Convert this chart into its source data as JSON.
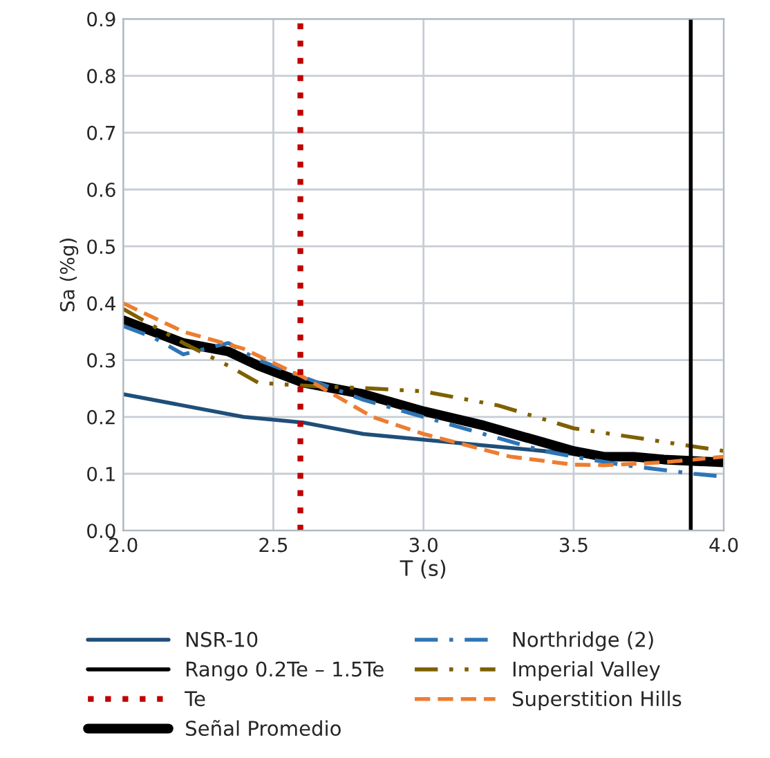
{
  "chart_data": {
    "type": "line",
    "xlabel": "T (s)",
    "ylabel": "Sa (%g)",
    "xlim": [
      2.0,
      4.0
    ],
    "ylim": [
      0.0,
      0.9
    ],
    "xticks": [
      {
        "value": 2.0,
        "label": "2.0"
      },
      {
        "value": 2.5,
        "label": "2.5"
      },
      {
        "value": 3.0,
        "label": "3.0"
      },
      {
        "value": 3.5,
        "label": "3.5"
      },
      {
        "value": 4.0,
        "label": "4.0"
      }
    ],
    "yticks": [
      {
        "value": 0.0,
        "label": "0.0"
      },
      {
        "value": 0.1,
        "label": "0.1"
      },
      {
        "value": 0.2,
        "label": "0.2"
      },
      {
        "value": 0.3,
        "label": "0.3"
      },
      {
        "value": 0.4,
        "label": "0.4"
      },
      {
        "value": 0.5,
        "label": "0.5"
      },
      {
        "value": 0.6,
        "label": "0.6"
      },
      {
        "value": 0.7,
        "label": "0.7"
      },
      {
        "value": 0.8,
        "label": "0.8"
      },
      {
        "value": 0.9,
        "label": "0.9"
      }
    ],
    "grid": true,
    "legend": "bottom",
    "series": [
      {
        "name": "NSR-10",
        "color": "#1f4e79",
        "line_style": "solid",
        "x": [
          2.0,
          2.2,
          2.4,
          2.6,
          2.8,
          3.0,
          3.2,
          3.4,
          3.6,
          3.8,
          4.0
        ],
        "values": [
          0.24,
          0.22,
          0.2,
          0.19,
          0.17,
          0.16,
          0.15,
          0.14,
          0.13,
          0.125,
          0.12
        ]
      },
      {
        "name": "Señal Promedio",
        "color": "#000000",
        "line_style": "solid",
        "x": [
          2.0,
          2.1,
          2.2,
          2.3,
          2.35,
          2.45,
          2.6,
          2.8,
          3.0,
          3.2,
          3.4,
          3.5,
          3.6,
          3.7,
          3.8,
          4.0
        ],
        "values": [
          0.37,
          0.35,
          0.33,
          0.32,
          0.315,
          0.29,
          0.26,
          0.24,
          0.21,
          0.185,
          0.155,
          0.14,
          0.13,
          0.13,
          0.125,
          0.12
        ]
      },
      {
        "name": "Northridge (2)",
        "color": "#2e75b6",
        "line_style": "dashdot",
        "x": [
          2.0,
          2.1,
          2.2,
          2.35,
          2.45,
          2.6,
          2.8,
          3.0,
          3.2,
          3.4,
          3.5,
          3.67,
          3.9,
          4.0
        ],
        "values": [
          0.36,
          0.34,
          0.31,
          0.33,
          0.3,
          0.27,
          0.23,
          0.2,
          0.17,
          0.14,
          0.13,
          0.115,
          0.1,
          0.095
        ]
      },
      {
        "name": "Imperial Valley",
        "color": "#7f6000",
        "line_style": "dashdotdot",
        "x": [
          2.0,
          2.2,
          2.35,
          2.45,
          2.6,
          2.83,
          3.0,
          3.25,
          3.5,
          3.75,
          4.0
        ],
        "values": [
          0.39,
          0.33,
          0.29,
          0.26,
          0.255,
          0.25,
          0.245,
          0.22,
          0.18,
          0.16,
          0.14
        ]
      },
      {
        "name": "Superstition Hills",
        "color": "#ed7d31",
        "line_style": "dashed",
        "x": [
          2.0,
          2.2,
          2.4,
          2.6,
          2.83,
          3.0,
          3.29,
          3.5,
          3.6,
          3.8,
          4.0
        ],
        "values": [
          0.4,
          0.35,
          0.32,
          0.27,
          0.2,
          0.17,
          0.13,
          0.116,
          0.115,
          0.12,
          0.13
        ]
      }
    ],
    "ref_lines": [
      {
        "axis": "x",
        "value": 3.89,
        "label": "Rango 0.2Te – 1.5Te",
        "color": "#000000",
        "line_style": "solid"
      },
      {
        "axis": "x",
        "value": 2.59,
        "label": "Te",
        "color": "#c00000",
        "line_style": "dotted"
      }
    ]
  }
}
